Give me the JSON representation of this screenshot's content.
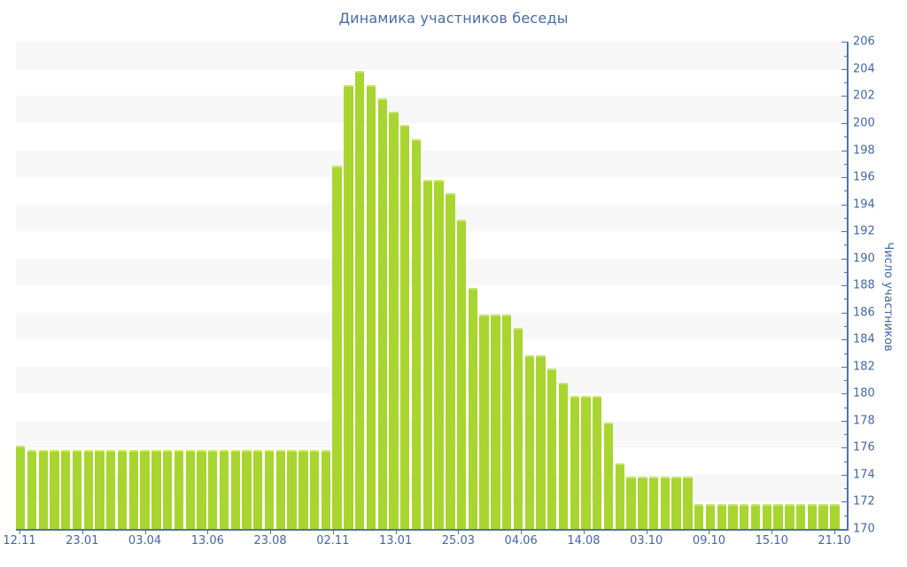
{
  "title": "Динамика участников беседы",
  "chart_data": {
    "type": "bar",
    "title": "Динамика участников беседы",
    "xlabel": "",
    "ylabel": "Число участников",
    "ylim": [
      170,
      206
    ],
    "y_tick_step": 2,
    "y_minor_tick_step": 1,
    "grid": "alternating horizontal background bands, 2 units tall",
    "legend": "none",
    "y_tick_labels": [
      "206",
      "204",
      "202",
      "200",
      "198",
      "196",
      "194",
      "192",
      "190",
      "188",
      "186",
      "184",
      "182",
      "180",
      "178",
      "176",
      "174",
      "172",
      "170"
    ],
    "x_tick_labels": [
      "12.11",
      "23.01",
      "03.04",
      "13.06",
      "23.08",
      "02.11",
      "13.01",
      "25.03",
      "04.06",
      "14.08",
      "03.10",
      "09.10",
      "15.10",
      "21.10"
    ],
    "values": [
      176.3,
      176,
      176,
      176,
      176,
      176,
      176,
      176,
      176,
      176,
      176,
      176,
      176,
      176,
      176,
      176,
      176,
      176,
      176,
      176,
      176,
      176,
      176,
      176,
      176,
      176,
      176,
      176,
      197,
      203,
      204,
      203,
      202,
      201,
      200,
      199,
      196,
      196,
      195,
      193,
      188,
      186,
      186,
      186,
      185,
      183,
      183,
      182,
      181,
      180,
      180,
      180,
      178,
      175,
      174,
      174,
      174,
      174,
      174,
      174,
      172,
      172,
      172,
      172,
      172,
      172,
      172,
      172,
      172,
      172,
      172,
      172,
      172
    ],
    "colors": {
      "bar": "#a8d52f",
      "bar_cap": "#c6e56e",
      "axis": "#4d74a8",
      "tick_text": "#44679f",
      "title_text": "#4a6b9f",
      "band": "#f7f7f7",
      "background": "#ffffff"
    }
  }
}
